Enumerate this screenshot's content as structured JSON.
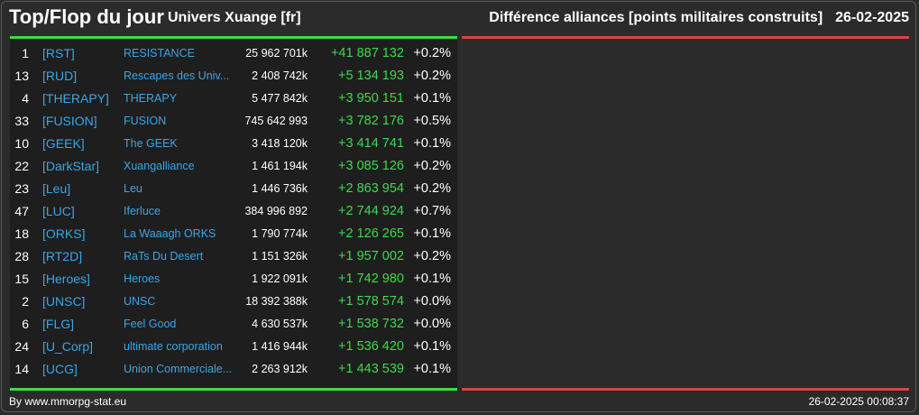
{
  "header": {
    "title": "Top/Flop du jour",
    "subtitle": "Univers Xuange [fr]",
    "right_title": "Différence alliances [points militaires construits]",
    "date": "26-02-2025"
  },
  "colors": {
    "background": "#2b2b2b",
    "panel": "#1e1e1e",
    "top_bar": "#3fd94d",
    "flop_bar": "#d9453f",
    "tag": "#3da5e8",
    "positive": "#3fd94d"
  },
  "top_list": [
    {
      "rank": "1",
      "tag": "[RST]",
      "name": "RESISTANCE",
      "points": "25 962 701k",
      "diff": "+41 887 132",
      "pct": "+0.2%"
    },
    {
      "rank": "13",
      "tag": "[RUD]",
      "name": "Rescapes des Univ...",
      "points": "2 408 742k",
      "diff": "+5 134 193",
      "pct": "+0.2%"
    },
    {
      "rank": "4",
      "tag": "[THERAPY]",
      "name": "THERAPY",
      "points": "5 477 842k",
      "diff": "+3 950 151",
      "pct": "+0.1%"
    },
    {
      "rank": "33",
      "tag": "[FUSION]",
      "name": "FUSION",
      "points": "745 642 993",
      "diff": "+3 782 176",
      "pct": "+0.5%"
    },
    {
      "rank": "10",
      "tag": "[GEEK]",
      "name": "The GEEK",
      "points": "3 418 120k",
      "diff": "+3 414 741",
      "pct": "+0.1%"
    },
    {
      "rank": "22",
      "tag": "[DarkStar]",
      "name": "Xuangalliance",
      "points": "1 461 194k",
      "diff": "+3 085 126",
      "pct": "+0.2%"
    },
    {
      "rank": "23",
      "tag": "[Leu]",
      "name": "Leu",
      "points": "1 446 736k",
      "diff": "+2 863 954",
      "pct": "+0.2%"
    },
    {
      "rank": "47",
      "tag": "[LUC]",
      "name": "Iferluce",
      "points": "384 996 892",
      "diff": "+2 744 924",
      "pct": "+0.7%"
    },
    {
      "rank": "18",
      "tag": "[ORKS]",
      "name": "La Waaagh ORKS",
      "points": "1 790 774k",
      "diff": "+2 126 265",
      "pct": "+0.1%"
    },
    {
      "rank": "28",
      "tag": "[RT2D]",
      "name": "RaTs Du Desert",
      "points": "1 151 326k",
      "diff": "+1 957 002",
      "pct": "+0.2%"
    },
    {
      "rank": "15",
      "tag": "[Heroes]",
      "name": "Heroes",
      "points": "1 922 091k",
      "diff": "+1 742 980",
      "pct": "+0.1%"
    },
    {
      "rank": "2",
      "tag": "[UNSC]",
      "name": "UNSC",
      "points": "18 392 388k",
      "diff": "+1 578 574",
      "pct": "+0.0%"
    },
    {
      "rank": "6",
      "tag": "[FLG]",
      "name": "Feel Good",
      "points": "4 630 537k",
      "diff": "+1 538 732",
      "pct": "+0.0%"
    },
    {
      "rank": "24",
      "tag": "[U_Corp]",
      "name": "ultimate corporation",
      "points": "1 416 944k",
      "diff": "+1 536 420",
      "pct": "+0.1%"
    },
    {
      "rank": "14",
      "tag": "[UCG]",
      "name": "Union Commerciale...",
      "points": "2 263 912k",
      "diff": "+1 443 539",
      "pct": "+0.1%"
    }
  ],
  "footer": {
    "credit": "By www.mmorpg-stat.eu",
    "timestamp": "26-02-2025 00:08:37"
  }
}
